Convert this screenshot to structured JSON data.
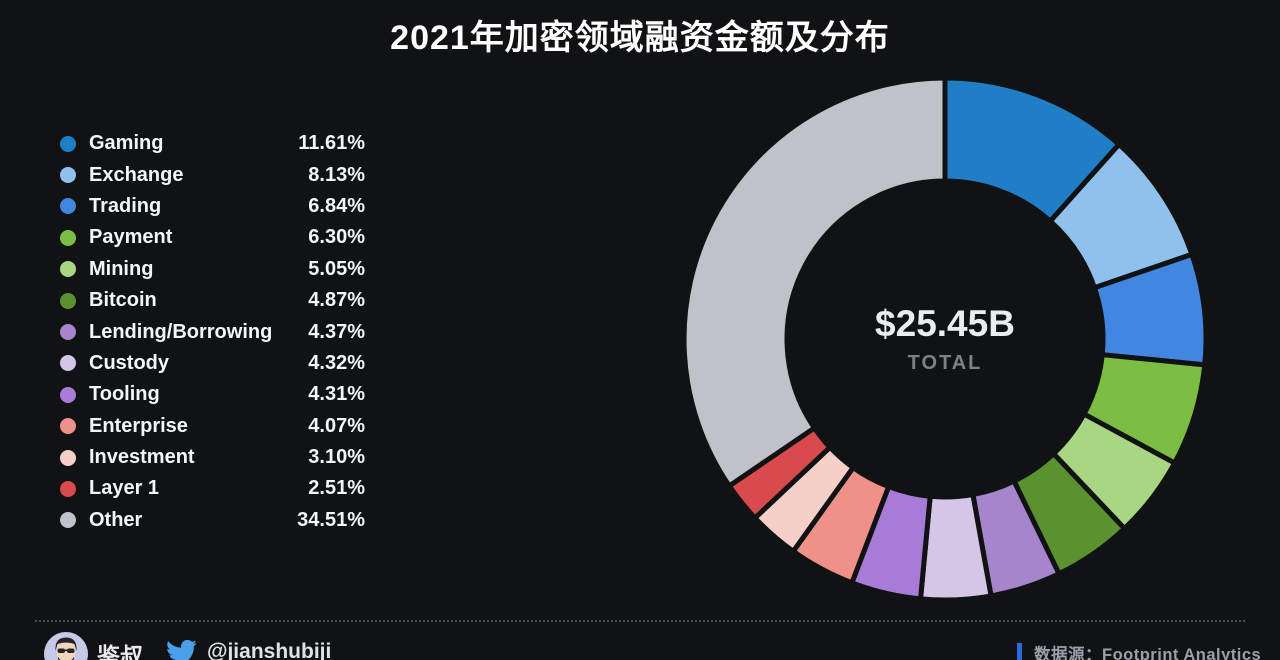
{
  "title": "2021年加密领域融资金额及分布",
  "chart_data": {
    "type": "pie",
    "subtype": "donut",
    "title": "2021年加密领域融资金额及分布",
    "total_value": "$25.45B",
    "total_label": "TOTAL",
    "legend_position": "left",
    "categories": [
      "Gaming",
      "Exchange",
      "Trading",
      "Payment",
      "Mining",
      "Bitcoin",
      "Lending/Borrowing",
      "Custody",
      "Tooling",
      "Enterprise",
      "Investment",
      "Layer 1",
      "Other"
    ],
    "values": [
      11.61,
      8.13,
      6.84,
      6.3,
      5.05,
      4.87,
      4.37,
      4.32,
      4.31,
      4.07,
      3.1,
      2.51,
      34.51
    ],
    "percent_labels": [
      "11.61%",
      "8.13%",
      "6.84%",
      "6.30%",
      "5.05%",
      "4.87%",
      "4.37%",
      "4.32%",
      "4.31%",
      "4.07%",
      "3.10%",
      "2.51%",
      "34.51%"
    ],
    "colors": [
      "#1f7ec6",
      "#8fc1ec",
      "#4187e2",
      "#7cbe44",
      "#a8d682",
      "#5b9230",
      "#a685cc",
      "#d5c5e6",
      "#a87bd8",
      "#ef9189",
      "#f7cfc9",
      "#d94a4c",
      "#bfc2c8"
    ],
    "start_angle_deg": 0,
    "direction": "clockwise"
  },
  "footer": {
    "author_name": "鉴叔",
    "twitter_handle": "@jianshubiji",
    "source_label": "数据源：Footprint  Analytics"
  },
  "colors": {
    "background": "#111213",
    "title_text": "#ffffff",
    "total_caption_text": "#7d8087",
    "separator": "#4a4a4a",
    "twitter_blue": "#4aa1eb",
    "source_accent": "#2b6be0",
    "avatar_background": "#c6c9e8"
  }
}
